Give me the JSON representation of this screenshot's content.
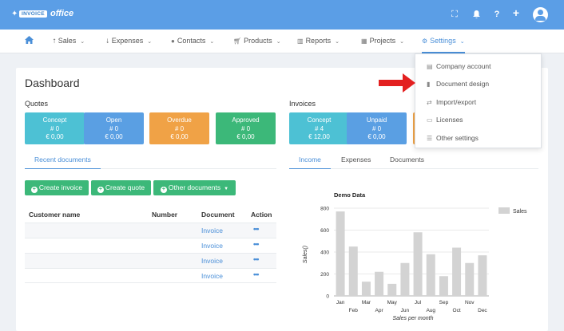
{
  "brand": {
    "logo_badge": "INVOICE",
    "logo_text": "office"
  },
  "nav": {
    "items": [
      {
        "label": "Sales",
        "icon": "arrow-up-icon"
      },
      {
        "label": "Expenses",
        "icon": "arrow-down-icon"
      },
      {
        "label": "Contacts",
        "icon": "user-icon"
      },
      {
        "label": "Products",
        "icon": "cart-icon"
      },
      {
        "label": "Reports",
        "icon": "bar-chart-icon"
      },
      {
        "label": "Projects",
        "icon": "calendar-icon"
      },
      {
        "label": "Settings",
        "icon": "gear-icon"
      }
    ]
  },
  "settings_menu": {
    "items": [
      {
        "label": "Company account",
        "icon": "building-icon"
      },
      {
        "label": "Document design",
        "icon": "document-icon"
      },
      {
        "label": "Import/export",
        "icon": "import-export-icon"
      },
      {
        "label": "Licenses",
        "icon": "id-card-icon"
      },
      {
        "label": "Other settings",
        "icon": "sliders-icon"
      }
    ]
  },
  "page": {
    "title": "Dashboard"
  },
  "quotes": {
    "title": "Quotes",
    "cards": [
      {
        "label": "Concept",
        "count": "# 0",
        "amount": "€ 0,00",
        "color": "#4dc1d4"
      },
      {
        "label": "Open",
        "count": "# 0",
        "amount": "€ 0,00",
        "color": "#5a9fe3"
      },
      {
        "label": "Overdue",
        "count": "# 0",
        "amount": "€ 0,00",
        "color": "#f0a246"
      },
      {
        "label": "Approved",
        "count": "# 0",
        "amount": "€ 0,00",
        "color": "#3cb879"
      }
    ]
  },
  "invoices": {
    "title": "Invoices",
    "cards": [
      {
        "label": "Concept",
        "count": "# 4",
        "amount": "€ 12,00",
        "color": "#4dc1d4"
      },
      {
        "label": "Unpaid",
        "count": "# 0",
        "amount": "€ 0,00",
        "color": "#5a9fe3"
      },
      {
        "color": "#f0a246"
      },
      {
        "color": "#3cb879"
      }
    ]
  },
  "left_tabs": [
    {
      "label": "Recent documents"
    }
  ],
  "right_tabs": [
    {
      "label": "Income"
    },
    {
      "label": "Expenses"
    },
    {
      "label": "Documents"
    }
  ],
  "buttons": {
    "create_invoice": "Create invoice",
    "create_quote": "Create quote",
    "other_documents": "Other documents"
  },
  "table": {
    "headers": [
      "Customer name",
      "Number",
      "Document",
      "Action"
    ],
    "rows": [
      {
        "document": "Invoice",
        "action": "•••"
      },
      {
        "document": "Invoice",
        "action": "•••"
      },
      {
        "document": "Invoice",
        "action": "•••"
      },
      {
        "document": "Invoice",
        "action": "•••"
      }
    ]
  },
  "chart_data": {
    "type": "bar",
    "title": "Demo Data",
    "xlabel": "Sales per month",
    "ylabel": "Sales()",
    "ylim": [
      0,
      800
    ],
    "yticks": [
      0,
      200,
      400,
      600,
      800
    ],
    "categories": [
      "Jan",
      "Feb",
      "Mar",
      "Apr",
      "May",
      "Jun",
      "Jul",
      "Aug",
      "Sep",
      "Oct",
      "Nov",
      "Dec"
    ],
    "series": [
      {
        "name": "Sales",
        "values": [
          770,
          450,
          130,
          220,
          110,
          300,
          580,
          380,
          180,
          440,
          300,
          370
        ],
        "color": "#d3d3d3"
      }
    ],
    "legend": "right",
    "grid": true
  }
}
